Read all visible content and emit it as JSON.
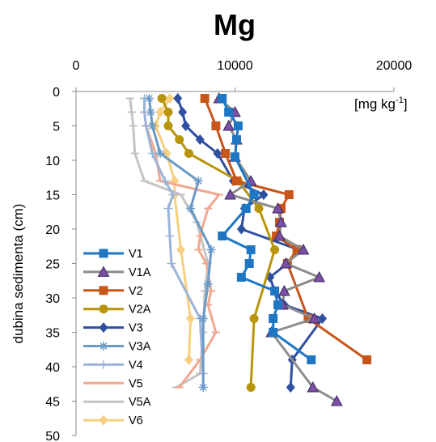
{
  "chart_data": {
    "type": "line",
    "title": "Mg",
    "xlabel": "",
    "ylabel": "dubina sedimenta (cm)",
    "units_label": "[mg kg",
    "units_superscript": "-1",
    "units_suffix": "]",
    "x_axis_position": "top",
    "xlim": [
      0,
      20000
    ],
    "ylim": [
      0,
      50
    ],
    "y_inverted": true,
    "x_ticks": [
      0,
      10000,
      20000
    ],
    "y_ticks": [
      0,
      5,
      10,
      15,
      20,
      25,
      30,
      35,
      40,
      45,
      50
    ],
    "grid": false,
    "legend_position": "bottom-left",
    "series": [
      {
        "name": "V1",
        "color": "#1f77c4",
        "marker": "square",
        "points": [
          [
            9200,
            1
          ],
          [
            9600,
            3
          ],
          [
            10200,
            5
          ],
          [
            10100,
            7
          ],
          [
            10000,
            9.5
          ],
          [
            11200,
            15
          ],
          [
            10700,
            17
          ],
          [
            9200,
            21
          ],
          [
            11000,
            23
          ],
          [
            10900,
            25
          ],
          [
            10400,
            27
          ],
          [
            12500,
            29
          ],
          [
            12700,
            31
          ],
          [
            12400,
            33
          ],
          [
            12400,
            35
          ],
          [
            14800,
            39
          ]
        ]
      },
      {
        "name": "V1A",
        "color": "#8c8c8c",
        "marker": "triangle",
        "points": [
          [
            9000,
            1
          ],
          [
            10000,
            3
          ],
          [
            9600,
            5
          ],
          [
            10100,
            7
          ],
          [
            10000,
            9.5
          ],
          [
            11000,
            13
          ],
          [
            9700,
            15
          ],
          [
            12700,
            17
          ],
          [
            12900,
            19
          ],
          [
            12800,
            21
          ],
          [
            14300,
            23
          ],
          [
            13200,
            25
          ],
          [
            15300,
            27
          ],
          [
            13100,
            29
          ],
          [
            13000,
            31
          ],
          [
            15000,
            33
          ],
          [
            12300,
            35
          ],
          [
            14900,
            43
          ],
          [
            16400,
            45
          ]
        ]
      },
      {
        "name": "V2",
        "color": "#c8551a",
        "marker": "square",
        "points": [
          [
            8100,
            1
          ],
          [
            8800,
            5
          ],
          [
            9400,
            9
          ],
          [
            10100,
            13
          ],
          [
            13400,
            15
          ],
          [
            12900,
            17
          ],
          [
            12800,
            19
          ],
          [
            12600,
            21
          ],
          [
            13900,
            23
          ],
          [
            13300,
            25
          ],
          [
            14600,
            33
          ],
          [
            18300,
            39
          ]
        ]
      },
      {
        "name": "V2A",
        "color": "#b8950a",
        "marker": "circle",
        "points": [
          [
            5400,
            1
          ],
          [
            5800,
            3
          ],
          [
            5800,
            5
          ],
          [
            6500,
            7
          ],
          [
            7100,
            9
          ],
          [
            10200,
            13
          ],
          [
            11500,
            17
          ],
          [
            12500,
            23
          ],
          [
            11200,
            33
          ],
          [
            11000,
            43
          ]
        ]
      },
      {
        "name": "V3",
        "color": "#2f4fa0",
        "marker": "diamond",
        "points": [
          [
            6400,
            1
          ],
          [
            6700,
            3
          ],
          [
            6900,
            5
          ],
          [
            7800,
            7
          ],
          [
            8900,
            9
          ],
          [
            9900,
            13
          ],
          [
            11800,
            15
          ],
          [
            10600,
            17
          ],
          [
            10400,
            20
          ],
          [
            14000,
            23
          ],
          [
            13300,
            25
          ],
          [
            12200,
            27
          ],
          [
            12500,
            29
          ],
          [
            13100,
            31
          ],
          [
            15500,
            33
          ],
          [
            13600,
            39
          ],
          [
            13500,
            43
          ]
        ]
      },
      {
        "name": "V3A",
        "color": "#6a9ac8",
        "marker": "asterisk",
        "points": [
          [
            4600,
            1
          ],
          [
            4700,
            3
          ],
          [
            4800,
            5
          ],
          [
            5300,
            9
          ],
          [
            7700,
            13
          ],
          [
            7200,
            17
          ],
          [
            8500,
            23
          ],
          [
            8300,
            28
          ],
          [
            8000,
            33
          ],
          [
            8000,
            43
          ]
        ]
      },
      {
        "name": "V4",
        "color": "#9cb4d8",
        "marker": "plus",
        "points": [
          [
            4300,
            1
          ],
          [
            4300,
            3
          ],
          [
            4400,
            5
          ],
          [
            4800,
            9
          ],
          [
            5600,
            13
          ],
          [
            6100,
            15
          ],
          [
            5800,
            17
          ],
          [
            5900,
            21
          ],
          [
            6000,
            25
          ],
          [
            7800,
            33
          ],
          [
            8000,
            41
          ]
        ]
      },
      {
        "name": "V5",
        "color": "#f0a890",
        "marker": "none",
        "points": [
          [
            4300,
            1
          ],
          [
            4300,
            3
          ],
          [
            4400,
            5
          ],
          [
            5000,
            9
          ],
          [
            5300,
            13
          ],
          [
            9000,
            15
          ],
          [
            8300,
            17
          ],
          [
            7800,
            21
          ],
          [
            7700,
            23
          ],
          [
            8200,
            25
          ],
          [
            8500,
            29
          ],
          [
            8300,
            31
          ],
          [
            8800,
            35
          ],
          [
            7800,
            39
          ],
          [
            6500,
            43
          ]
        ]
      },
      {
        "name": "V5A",
        "color": "#c4c4c4",
        "marker": "none",
        "points": [
          [
            3400,
            1
          ],
          [
            3500,
            3
          ],
          [
            3600,
            5
          ],
          [
            3700,
            9
          ],
          [
            4300,
            13
          ],
          [
            6600,
            15
          ],
          [
            7600,
            19
          ],
          [
            8300,
            25
          ],
          [
            8100,
            29
          ],
          [
            8000,
            35
          ],
          [
            7800,
            41
          ],
          [
            6300,
            43
          ]
        ]
      },
      {
        "name": "V6",
        "color": "#f8cf80",
        "marker": "diamond",
        "points": [
          [
            5900,
            1
          ],
          [
            5300,
            3
          ],
          [
            5000,
            5
          ],
          [
            5700,
            9
          ],
          [
            6200,
            13
          ],
          [
            6200,
            15
          ],
          [
            6600,
            23
          ],
          [
            7200,
            33
          ],
          [
            7100,
            39
          ]
        ]
      }
    ]
  }
}
